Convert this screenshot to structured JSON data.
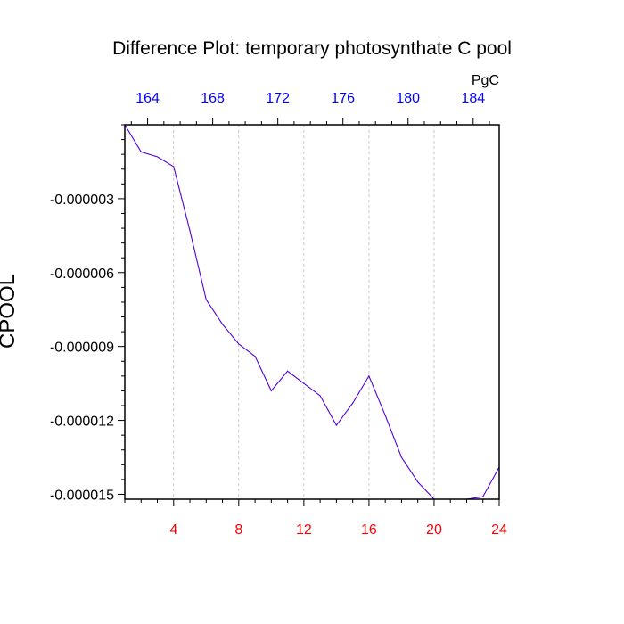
{
  "chart_data": {
    "type": "line",
    "title": "Difference Plot: temporary photosynthate C pool",
    "ylabel": "CPOOL",
    "top_axis_unit": "PgC",
    "x": [
      1,
      2,
      3,
      4,
      5,
      6,
      7,
      8,
      9,
      10,
      11,
      12,
      13,
      14,
      15,
      16,
      17,
      18,
      19,
      20,
      21,
      22,
      23,
      24
    ],
    "series": [
      {
        "values": [
          -0.0,
          -1.1e-06,
          -1.3e-06,
          -1.7e-06,
          -4.3e-06,
          -7.1e-06,
          -8.1e-06,
          -8.9e-06,
          -9.4e-06,
          -1.08e-05,
          -1e-05,
          -1.05e-05,
          -1.1e-05,
          -1.22e-05,
          -1.13e-05,
          -1.02e-05,
          -1.18e-05,
          -1.35e-05,
          -1.45e-05,
          -1.52e-05,
          -1.52e-05,
          -1.52e-05,
          -1.51e-05,
          -1.39e-05
        ],
        "color": "#8000c0"
      }
    ],
    "xlim": [
      1,
      24
    ],
    "ylim": [
      -1.52e-05,
      0.0
    ],
    "xticks": [
      4,
      8,
      12,
      16,
      20,
      24
    ],
    "xtick_labels": [
      "4",
      "8",
      "12",
      "16",
      "20",
      "24"
    ],
    "xtick_color": "#ff0000",
    "top_ticks": [
      164,
      168,
      172,
      176,
      180,
      184
    ],
    "top_tick_labels": [
      "164",
      "168",
      "172",
      "176",
      "180",
      "184"
    ],
    "top_xlim": [
      162.6,
      185.6
    ],
    "top_tick_color": "#0000ff",
    "yticks": [
      -3e-06,
      -6e-06,
      -9e-06,
      -1.2e-05,
      -1.5e-05
    ],
    "ytick_labels": [
      "-0.000003",
      "-0.000006",
      "-0.000009",
      "-0.000012",
      "-0.000015"
    ],
    "grid": "vertical dashed"
  }
}
